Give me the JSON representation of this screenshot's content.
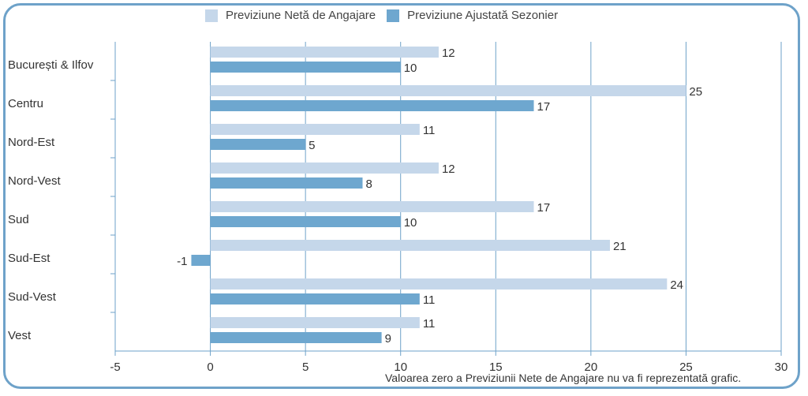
{
  "colors": {
    "net": "#c5d7ea",
    "adjusted": "#6ea7cf",
    "grid": "#6ea2c9",
    "frame": "#6ea2c9"
  },
  "legend": {
    "net": "Previziune Netă de Angajare",
    "adjusted": "Previziune Ajustată Sezonier"
  },
  "note": "Valoarea zero a Previziunii Nete de Angajare nu va fi reprezentată grafic.",
  "chart_data": {
    "type": "bar",
    "orientation": "horizontal",
    "categories": [
      "București & Ilfov",
      "Centru",
      "Nord-Est",
      "Nord-Vest",
      "Sud",
      "Sud-Est",
      "Sud-Vest",
      "Vest"
    ],
    "series": [
      {
        "name": "Previziune Netă de Angajare",
        "values": [
          12,
          25,
          11,
          12,
          17,
          21,
          24,
          11
        ]
      },
      {
        "name": "Previziune Ajustată Sezonier",
        "values": [
          10,
          17,
          5,
          8,
          10,
          -1,
          11,
          9
        ]
      }
    ],
    "xlim": [
      -5,
      30
    ],
    "xticks": [
      "-5",
      "0",
      "5",
      "10",
      "15",
      "20",
      "25",
      "30"
    ],
    "grid": true,
    "legend_position": "top"
  }
}
